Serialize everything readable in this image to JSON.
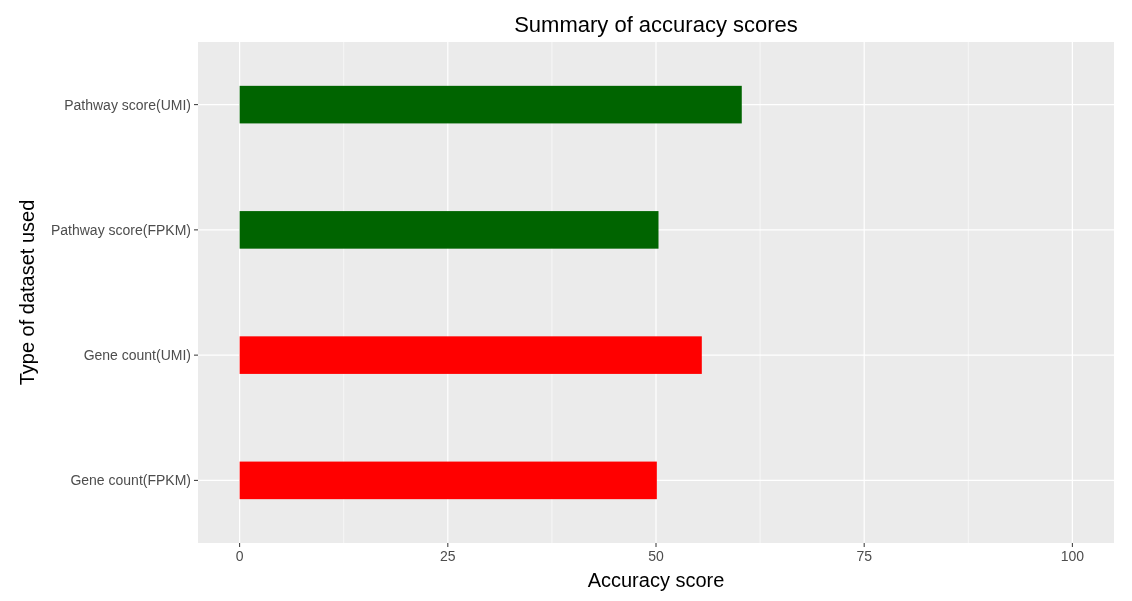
{
  "chart_data": {
    "type": "bar",
    "orientation": "horizontal",
    "title": "Summary of accuracy scores",
    "xlabel": "Accuracy score",
    "ylabel": "Type of dataset used",
    "categories": [
      "Pathway score(UMI)",
      "Pathway score(FPKM)",
      "Gene count(UMI)",
      "Gene count(FPKM)"
    ],
    "values": [
      60.3,
      50.3,
      55.5,
      50.1
    ],
    "colors": [
      "#006400",
      "#006400",
      "#ff0000",
      "#ff0000"
    ],
    "xlim": [
      -5,
      105
    ],
    "xticks": [
      0,
      25,
      50,
      75,
      100
    ],
    "grid": true
  }
}
